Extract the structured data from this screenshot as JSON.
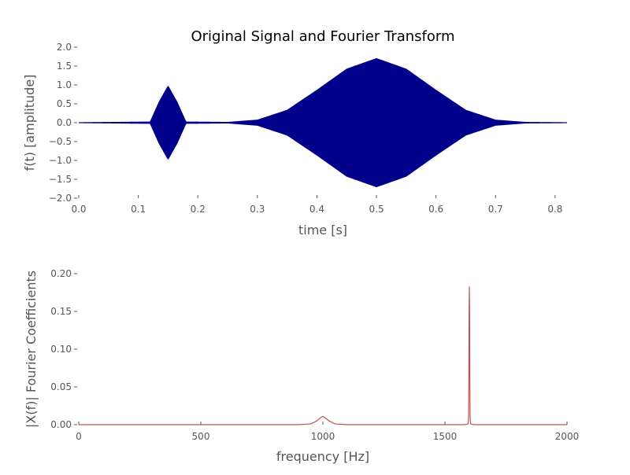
{
  "chart_data": [
    {
      "type": "line",
      "title": "Original Signal and Fourier Transform",
      "xlabel": "time [s]",
      "ylabel": "f(t) [amplitude]",
      "xlim": [
        0.0,
        0.82
      ],
      "ylim": [
        -2.0,
        2.0
      ],
      "x_ticks": [
        "0.0",
        "0.1",
        "0.2",
        "0.3",
        "0.4",
        "0.5",
        "0.6",
        "0.7",
        "0.8"
      ],
      "y_ticks": [
        "−2.0",
        "−1.5",
        "−1.0",
        "−0.5",
        "0.0",
        "0.5",
        "1.0",
        "1.5",
        "2.0"
      ],
      "grid": false,
      "color": "#00008b",
      "series": [
        {
          "description_points": {
            "t": [
              0.0,
              0.12,
              0.135,
              0.15,
              0.165,
              0.18,
              0.25,
              0.3,
              0.35,
              0.4,
              0.45,
              0.5,
              0.55,
              0.6,
              0.65,
              0.7,
              0.75,
              0.82
            ],
            "envelope": [
              0.0,
              0.02,
              0.55,
              0.97,
              0.55,
              0.02,
              0.01,
              0.07,
              0.33,
              0.86,
              1.42,
              1.7,
              1.42,
              0.86,
              0.33,
              0.07,
              0.01,
              0.0
            ]
          }
        }
      ]
    },
    {
      "type": "line",
      "xlabel": "frequency [Hz]",
      "ylabel": "|X(f)| Fourier Coefficients",
      "xlim": [
        0,
        2000
      ],
      "ylim": [
        0.0,
        0.2
      ],
      "x_ticks": [
        "0",
        "500",
        "1000",
        "1500",
        "2000"
      ],
      "y_ticks": [
        "0.00",
        "0.05",
        "0.10",
        "0.15",
        "0.20"
      ],
      "grid": false,
      "color": "#c0504d",
      "series": [
        {
          "x": [
            0,
            900,
            950,
            975,
            990,
            1000,
            1010,
            1025,
            1050,
            1100,
            1580,
            1595,
            1597,
            1598,
            1599,
            1600,
            1601,
            1602,
            1603,
            1605,
            1620,
            2000
          ],
          "y": [
            0.0,
            0.0,
            0.001,
            0.005,
            0.009,
            0.011,
            0.009,
            0.005,
            0.001,
            0.0,
            0.0,
            0.001,
            0.01,
            0.06,
            0.15,
            0.183,
            0.15,
            0.06,
            0.01,
            0.001,
            0.0,
            0.0
          ]
        }
      ]
    }
  ]
}
